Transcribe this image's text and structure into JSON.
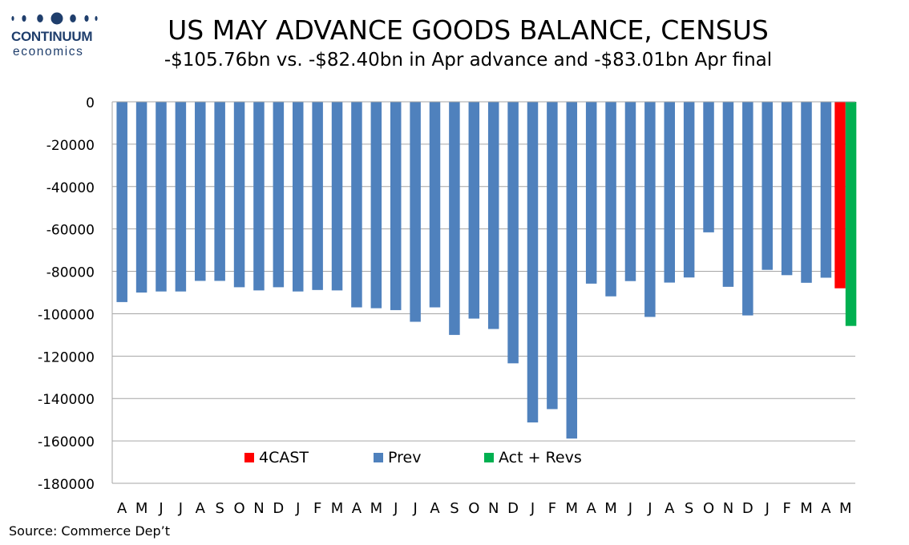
{
  "brand": {
    "name": "CONTINUUM",
    "sub": "economics",
    "color": "#1f3e6c"
  },
  "chart_data": {
    "type": "bar",
    "title": "US MAY ADVANCE GOODS BALANCE, CENSUS",
    "subtitle": "-$105.76bn vs. -$82.40bn in Apr advance and -$83.01bn Apr final",
    "source": "Source: Commerce Dep’t",
    "ylim": [
      -180000,
      0
    ],
    "yticks": [
      0,
      -20000,
      -40000,
      -60000,
      -80000,
      -100000,
      -120000,
      -140000,
      -160000,
      -180000
    ],
    "grid": true,
    "legend_position": "inside-bottom-left",
    "categories": [
      "A",
      "M",
      "J",
      "J",
      "A",
      "S",
      "O",
      "N",
      "D",
      "J",
      "F",
      "M",
      "A",
      "M",
      "J",
      "J",
      "A",
      "S",
      "O",
      "N",
      "D",
      "J",
      "F",
      "M",
      "A",
      "M",
      "J",
      "J",
      "A",
      "S",
      "O",
      "N",
      "D",
      "J",
      "F",
      "M",
      "A",
      "M"
    ],
    "series": [
      {
        "name": "4CAST",
        "color": "#ff0000",
        "values": [
          null,
          null,
          null,
          null,
          null,
          null,
          null,
          null,
          null,
          null,
          null,
          null,
          null,
          null,
          null,
          null,
          null,
          null,
          null,
          null,
          null,
          null,
          null,
          null,
          null,
          null,
          null,
          null,
          null,
          null,
          null,
          null,
          null,
          null,
          null,
          null,
          null,
          -88000
        ]
      },
      {
        "name": "Prev",
        "color": "#4f81bd",
        "values": [
          -94500,
          -90000,
          -89500,
          -89500,
          -84500,
          -84500,
          -87500,
          -89000,
          -87500,
          -89500,
          -88800,
          -89000,
          -97000,
          -97400,
          -98300,
          -103800,
          -97000,
          -110000,
          -102300,
          -107200,
          -123400,
          -151300,
          -145000,
          -158900,
          -85800,
          -91800,
          -84600,
          -101500,
          -85300,
          -82900,
          -61600,
          -87300,
          -100800,
          -79300,
          -81800,
          -85400,
          -83000,
          null
        ]
      },
      {
        "name": "Act + Revs",
        "color": "#00b050",
        "values": [
          null,
          null,
          null,
          null,
          null,
          null,
          null,
          null,
          null,
          null,
          null,
          null,
          null,
          null,
          null,
          null,
          null,
          null,
          null,
          null,
          null,
          null,
          null,
          null,
          null,
          null,
          null,
          null,
          null,
          null,
          null,
          null,
          null,
          null,
          null,
          null,
          null,
          -105760
        ]
      }
    ]
  }
}
